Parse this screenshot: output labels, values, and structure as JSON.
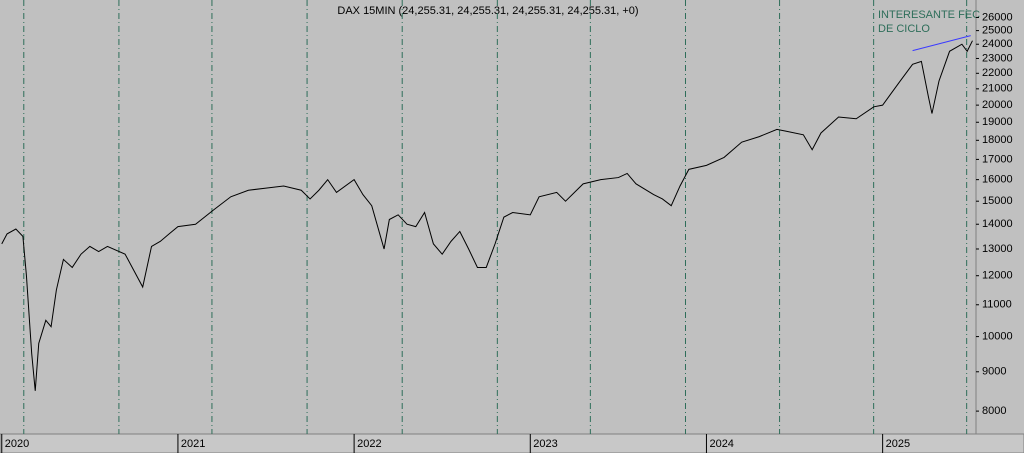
{
  "chart_data": {
    "type": "line",
    "title": "DAX 15MIN (24,255.31, 24,255.31, 24,255.31, 24,255.31, +0)",
    "annotation": [
      "INTERESANTE FEC",
      "DE CICLO"
    ],
    "log_scale": true,
    "color": "#000000",
    "x": [
      2020.0,
      2020.03,
      2020.08,
      2020.12,
      2020.14,
      2020.17,
      2020.19,
      2020.21,
      2020.25,
      2020.28,
      2020.31,
      2020.35,
      2020.4,
      2020.45,
      2020.5,
      2020.55,
      2020.6,
      2020.7,
      2020.8,
      2020.85,
      2020.9,
      2020.95,
      2021.0,
      2021.1,
      2021.2,
      2021.3,
      2021.4,
      2021.5,
      2021.6,
      2021.7,
      2021.75,
      2021.8,
      2021.85,
      2021.9,
      2022.0,
      2022.05,
      2022.1,
      2022.17,
      2022.2,
      2022.25,
      2022.3,
      2022.35,
      2022.4,
      2022.45,
      2022.5,
      2022.55,
      2022.6,
      2022.65,
      2022.7,
      2022.75,
      2022.8,
      2022.85,
      2022.9,
      2023.0,
      2023.05,
      2023.15,
      2023.2,
      2023.3,
      2023.4,
      2023.5,
      2023.55,
      2023.6,
      2023.7,
      2023.75,
      2023.8,
      2023.85,
      2023.9,
      2024.0,
      2024.1,
      2024.2,
      2024.3,
      2024.4,
      2024.45,
      2024.55,
      2024.6,
      2024.65,
      2024.75,
      2024.85,
      2024.95,
      2025.0,
      2025.1,
      2025.17,
      2025.22,
      2025.26,
      2025.28,
      2025.32,
      2025.38,
      2025.45,
      2025.48,
      2025.51
    ],
    "values": [
      13200,
      13600,
      13800,
      13500,
      12000,
      9500,
      8500,
      9800,
      10500,
      10300,
      11500,
      12600,
      12300,
      12800,
      13100,
      12900,
      13100,
      12800,
      11600,
      13100,
      13300,
      13600,
      13900,
      14000,
      14600,
      15200,
      15500,
      15600,
      15700,
      15500,
      15100,
      15500,
      16000,
      15400,
      16000,
      15300,
      14800,
      13000,
      14200,
      14400,
      14000,
      13900,
      14500,
      13200,
      12800,
      13300,
      13700,
      13000,
      12300,
      12300,
      13200,
      14300,
      14500,
      14400,
      15200,
      15400,
      15000,
      15800,
      16000,
      16100,
      16300,
      15800,
      15300,
      15100,
      14800,
      15700,
      16500,
      16700,
      17100,
      17900,
      18200,
      18600,
      18500,
      18300,
      17500,
      18400,
      19300,
      19200,
      19900,
      20000,
      21500,
      22600,
      22800,
      20500,
      19500,
      21500,
      23500,
      24000,
      23500,
      24255
    ],
    "xlim": [
      2019.99,
      2025.53
    ],
    "ylim": [
      7470,
      27400
    ],
    "xticks": [
      2020,
      2021,
      2022,
      2023,
      2024,
      2025
    ],
    "yticks": [
      8000,
      9000,
      10000,
      11000,
      12000,
      13000,
      14000,
      15000,
      16000,
      17000,
      18000,
      19000,
      20000,
      21000,
      22000,
      23000,
      24000,
      25000,
      26000
    ],
    "cycle_lines": {
      "color": "#2e6e5a",
      "x": [
        2020.125,
        2020.665,
        2021.193,
        2021.733,
        2022.273,
        2022.813,
        2023.341,
        2023.881,
        2024.415,
        2024.949,
        2025.477
      ]
    },
    "trendline": {
      "color": "#3a3aff",
      "x": [
        2025.17,
        2025.5
      ],
      "values": [
        23545,
        24630
      ]
    }
  }
}
